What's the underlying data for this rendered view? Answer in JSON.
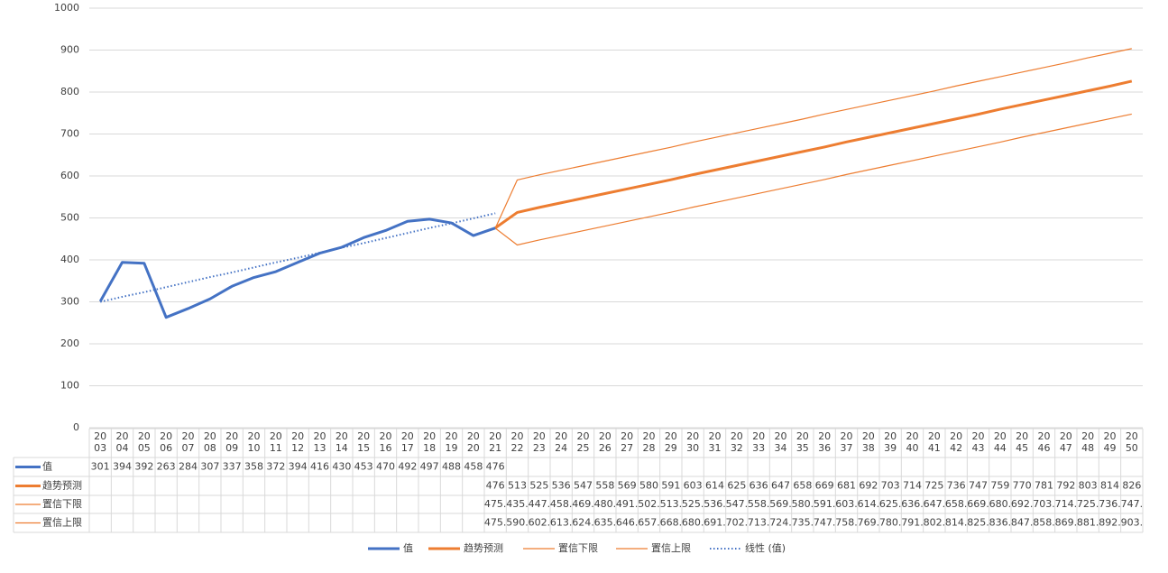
{
  "chart_data": {
    "type": "line",
    "categories": [
      "2003",
      "2004",
      "2005",
      "2006",
      "2007",
      "2008",
      "2009",
      "2010",
      "2011",
      "2012",
      "2013",
      "2014",
      "2015",
      "2016",
      "2017",
      "2018",
      "2019",
      "2020",
      "2021",
      "2022",
      "2023",
      "2024",
      "2025",
      "2026",
      "2027",
      "2028",
      "2029",
      "2030",
      "2031",
      "2032",
      "2033",
      "2034",
      "2035",
      "2036",
      "2037",
      "2038",
      "2039",
      "2040",
      "2041",
      "2042",
      "2043",
      "2044",
      "2045",
      "2046",
      "2047",
      "2048",
      "2049",
      "2050"
    ],
    "series": [
      {
        "name": "值",
        "color": "#4472c4",
        "line_style": "thick",
        "values": [
          301,
          394,
          392,
          263,
          284,
          307,
          337,
          358,
          372,
          394,
          416,
          430,
          453,
          470,
          492,
          497,
          488,
          458,
          476,
          null,
          null,
          null,
          null,
          null,
          null,
          null,
          null,
          null,
          null,
          null,
          null,
          null,
          null,
          null,
          null,
          null,
          null,
          null,
          null,
          null,
          null,
          null,
          null,
          null,
          null,
          null,
          null,
          null
        ]
      },
      {
        "name": "趋势预测",
        "color": "#ed7d31",
        "line_style": "thick",
        "values": [
          null,
          null,
          null,
          null,
          null,
          null,
          null,
          null,
          null,
          null,
          null,
          null,
          null,
          null,
          null,
          null,
          null,
          null,
          476,
          513,
          525,
          536,
          547,
          558,
          569,
          580,
          591,
          603,
          614,
          625,
          636,
          647,
          658,
          669,
          681,
          692,
          703,
          714,
          725,
          736,
          747,
          759,
          770,
          781,
          792,
          803,
          814,
          826
        ]
      },
      {
        "name": "置信下限",
        "color": "#ed7d31",
        "line_style": "thin",
        "values": [
          null,
          null,
          null,
          null,
          null,
          null,
          null,
          null,
          null,
          null,
          null,
          null,
          null,
          null,
          null,
          null,
          null,
          null,
          475.5,
          435.5,
          447.5,
          458.5,
          469.5,
          480.5,
          491.5,
          502.5,
          513.5,
          525.5,
          536.5,
          547.5,
          558.5,
          569.5,
          580.5,
          591.5,
          603.5,
          614.5,
          625.5,
          636.5,
          647.5,
          658.5,
          669.5,
          680.5,
          692.5,
          703.5,
          714.5,
          725.5,
          736.5,
          747.5
        ],
        "value_labels": [
          null,
          null,
          null,
          null,
          null,
          null,
          null,
          null,
          null,
          null,
          null,
          null,
          null,
          null,
          null,
          null,
          null,
          null,
          "475.",
          "435.",
          "447.",
          "458.",
          "469.",
          "480.",
          "491.",
          "502.",
          "513.",
          "525.",
          "536.",
          "547.",
          "558.",
          "569.",
          "580.",
          "591.",
          "603.",
          "614.",
          "625.",
          "636.",
          "647.",
          "658.",
          "669.",
          "680.",
          "692.",
          "703.",
          "714.",
          "725.",
          "736.",
          "747."
        ]
      },
      {
        "name": "置信上限",
        "color": "#ed7d31",
        "line_style": "thin",
        "values": [
          null,
          null,
          null,
          null,
          null,
          null,
          null,
          null,
          null,
          null,
          null,
          null,
          null,
          null,
          null,
          null,
          null,
          null,
          475.5,
          590.5,
          602.5,
          613.5,
          624.5,
          635.5,
          646.5,
          657.5,
          668.5,
          680.5,
          691.5,
          702.5,
          713.5,
          724.5,
          735.5,
          747.5,
          758.5,
          769.5,
          780.5,
          791.5,
          802.5,
          814.5,
          825.5,
          836.5,
          847.5,
          858.5,
          869.5,
          881.5,
          892.5,
          903.5
        ],
        "value_labels": [
          null,
          null,
          null,
          null,
          null,
          null,
          null,
          null,
          null,
          null,
          null,
          null,
          null,
          null,
          null,
          null,
          null,
          null,
          "475.",
          "590.",
          "602.",
          "613.",
          "624.",
          "635.",
          "646.",
          "657.",
          "668.",
          "680.",
          "691.",
          "702.",
          "713.",
          "724.",
          "735.",
          "747.",
          "758.",
          "769.",
          "780.",
          "791.",
          "802.",
          "814.",
          "825.",
          "836.",
          "847.",
          "858.",
          "869.",
          "881.",
          "892.",
          "903."
        ]
      }
    ],
    "trendline": {
      "name": "线性 (值)",
      "color": "#4472c4",
      "line_style": "dotted",
      "values": [
        300,
        312,
        323,
        335,
        347,
        359,
        370,
        382,
        394,
        405,
        417,
        429,
        440,
        452,
        464,
        476,
        487,
        499,
        511,
        null,
        null,
        null,
        null,
        null,
        null,
        null,
        null,
        null,
        null,
        null,
        null,
        null,
        null,
        null,
        null,
        null,
        null,
        null,
        null,
        null,
        null,
        null,
        null,
        null,
        null,
        null,
        null,
        null
      ]
    },
    "ylim": [
      0,
      1000
    ],
    "yticks": [
      0,
      100,
      200,
      300,
      400,
      500,
      600,
      700,
      800,
      900,
      1000
    ],
    "grid": true,
    "data_table": true,
    "legend": "bottom"
  }
}
